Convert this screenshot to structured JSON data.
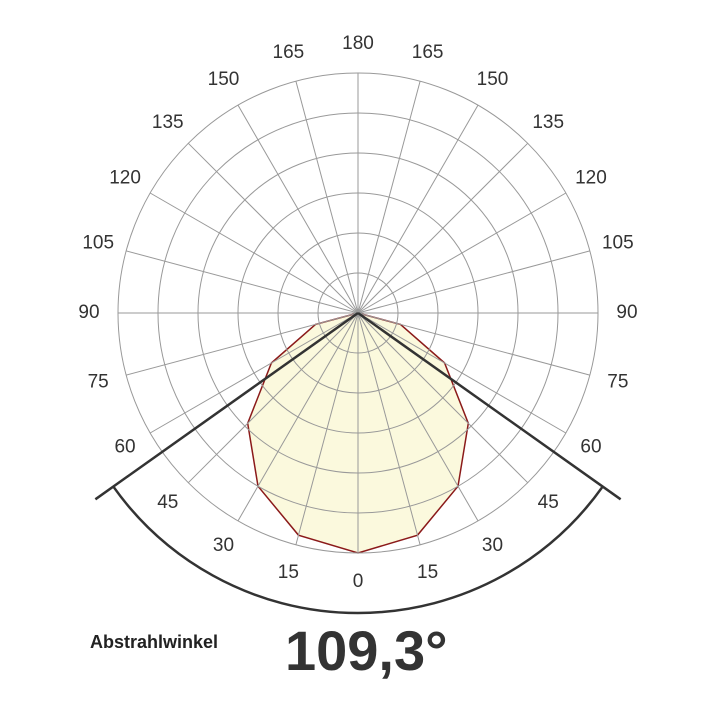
{
  "chart_data": {
    "type": "polar",
    "angles": [
      -90,
      -75,
      -60,
      -45,
      -30,
      -15,
      0,
      15,
      30,
      45,
      60,
      75,
      90
    ],
    "values": [
      0,
      22,
      50,
      78,
      100,
      115,
      120,
      115,
      100,
      78,
      50,
      22,
      0
    ],
    "fill": "#fbf9dd",
    "color": "#8b1a1a",
    "rlim": [
      0,
      120
    ],
    "rticks": [
      20,
      40,
      60,
      80,
      100,
      120
    ],
    "angle_ticks": [
      0,
      15,
      30,
      45,
      60,
      75,
      90,
      105,
      120,
      135,
      150,
      165,
      180
    ],
    "grid": true,
    "beam_label": "Abstrahlwinkel",
    "beam_angle": {
      "value": 109.3,
      "label": "109,3°"
    }
  }
}
